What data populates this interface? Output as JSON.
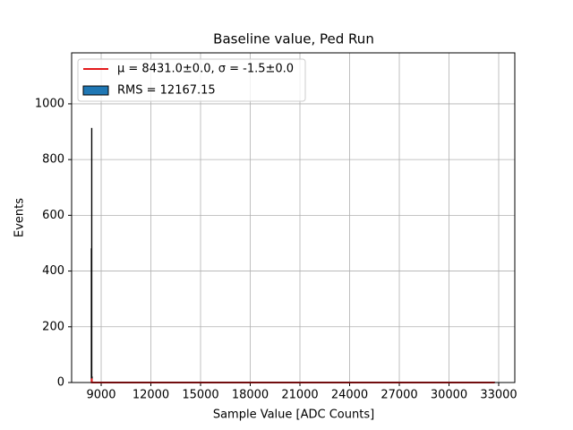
{
  "chart_data": {
    "type": "histogram",
    "title": "Baseline value, Ped Run",
    "xlabel": "Sample Value [ADC Counts]",
    "ylabel": "Events",
    "hist": {
      "name": "RMS = 12167.15",
      "color": "#1f77b4",
      "edgecolor": "#000000",
      "bins": [
        8400,
        8420,
        8440,
        8460,
        32757
      ],
      "counts": [
        480,
        912,
        20,
        1
      ]
    },
    "series": [
      {
        "name": "μ = 8431.0±0.0, σ = -1.5±0.0",
        "color": "#e41a1c",
        "x": [
          8428,
          8431,
          8434,
          32757
        ],
        "values": [
          0,
          15,
          0,
          0
        ]
      }
    ],
    "xlim": [
      7216,
      33973
    ],
    "ylim": [
      0,
      1183
    ],
    "xticks": [
      9000,
      12000,
      15000,
      18000,
      21000,
      24000,
      27000,
      30000,
      33000
    ],
    "yticks": [
      0,
      200,
      400,
      600,
      800,
      1000
    ],
    "grid": true,
    "legend": "upper left"
  }
}
